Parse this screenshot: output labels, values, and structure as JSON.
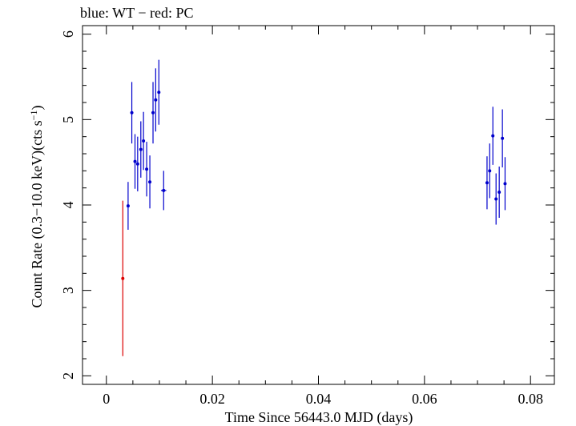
{
  "chart_data": {
    "type": "scatter",
    "title": "blue: WT − red: PC",
    "xlabel": "Time Since 56443.0 MJD (days)",
    "ylabel_main": "Count Rate (0.3−10.0 keV)(cts s",
    "ylabel_sup": "−1",
    "ylabel_close": ")",
    "xlim": [
      -0.0045,
      0.0845
    ],
    "ylim": [
      1.9,
      6.1
    ],
    "x_ticks": [
      0,
      0.02,
      0.04,
      0.06,
      0.08
    ],
    "x_tick_labels": [
      "0",
      "0.02",
      "0.04",
      "0.06",
      "0.08"
    ],
    "y_ticks": [
      2,
      3,
      4,
      5,
      6
    ],
    "y_tick_labels": [
      "2",
      "3",
      "4",
      "5",
      "6"
    ],
    "colors": {
      "wt": "#0000cc",
      "pc": "#dd0000"
    },
    "series": [
      {
        "name": "WT",
        "color": "#0000cc",
        "points": [
          {
            "x": 0.0041,
            "y": 3.99,
            "xerr": 0.0002,
            "yerr": 0.28
          },
          {
            "x": 0.0048,
            "y": 5.08,
            "xerr": 0.0002,
            "yerr": 0.36
          },
          {
            "x": 0.0054,
            "y": 4.51,
            "xerr": 0.0002,
            "yerr": 0.32
          },
          {
            "x": 0.0059,
            "y": 4.48,
            "xerr": 0.0002,
            "yerr": 0.32
          },
          {
            "x": 0.0065,
            "y": 4.65,
            "xerr": 0.0002,
            "yerr": 0.33
          },
          {
            "x": 0.007,
            "y": 4.75,
            "xerr": 0.0002,
            "yerr": 0.34
          },
          {
            "x": 0.0076,
            "y": 4.42,
            "xerr": 0.0002,
            "yerr": 0.32
          },
          {
            "x": 0.0082,
            "y": 4.27,
            "xerr": 0.0002,
            "yerr": 0.31
          },
          {
            "x": 0.0088,
            "y": 5.08,
            "xerr": 0.0002,
            "yerr": 0.36
          },
          {
            "x": 0.0093,
            "y": 5.23,
            "xerr": 0.0002,
            "yerr": 0.37
          },
          {
            "x": 0.0099,
            "y": 5.32,
            "xerr": 0.0002,
            "yerr": 0.38
          },
          {
            "x": 0.0108,
            "y": 4.17,
            "xerr": 0.0005,
            "yerr": 0.23
          },
          {
            "x": 0.0718,
            "y": 4.26,
            "xerr": 0.0002,
            "yerr": 0.31
          },
          {
            "x": 0.0723,
            "y": 4.4,
            "xerr": 0.0002,
            "yerr": 0.32
          },
          {
            "x": 0.0729,
            "y": 4.81,
            "xerr": 0.0002,
            "yerr": 0.34
          },
          {
            "x": 0.0735,
            "y": 4.07,
            "xerr": 0.0002,
            "yerr": 0.3
          },
          {
            "x": 0.0741,
            "y": 4.15,
            "xerr": 0.0002,
            "yerr": 0.3
          },
          {
            "x": 0.0747,
            "y": 4.78,
            "xerr": 0.0002,
            "yerr": 0.34
          },
          {
            "x": 0.0752,
            "y": 4.25,
            "xerr": 0.0002,
            "yerr": 0.31
          }
        ]
      },
      {
        "name": "PC",
        "color": "#dd0000",
        "points": [
          {
            "x": 0.0031,
            "y": 3.14,
            "xerr": 0.0001,
            "yerr": 0.91
          }
        ]
      }
    ]
  }
}
